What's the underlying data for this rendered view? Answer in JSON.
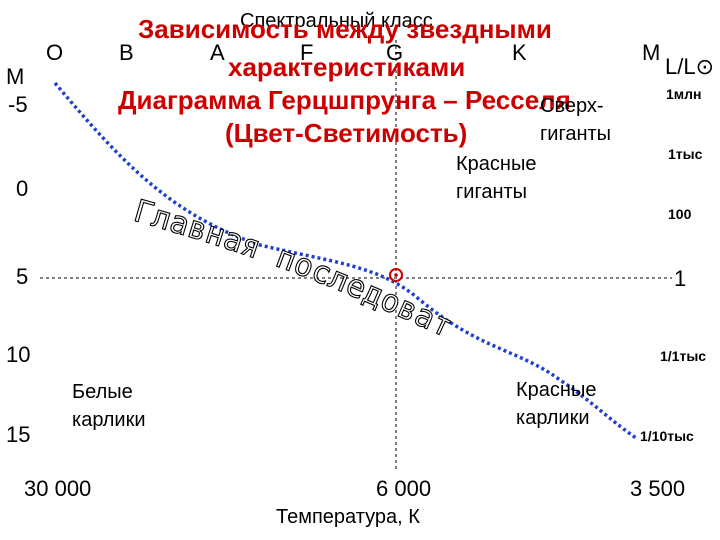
{
  "title": {
    "line1": "Зависимость между звездными",
    "line2": "характеристиками",
    "line3": "Диаграмма Герцшпрунга – Ресселя",
    "line4": "(Цвет-Светимость)"
  },
  "spectral_axis_title": "Спектральный класс",
  "left_axis_title": "M",
  "right_axis_title_m": "M",
  "right_axis_title": "L/L⊙",
  "spectral_classes": [
    "O",
    "B",
    "A",
    "F",
    "G",
    "K"
  ],
  "magnitudes": [
    "-5",
    "0",
    "5",
    "10",
    "15"
  ],
  "luminosities": [
    "1млн",
    "1тыс",
    "100",
    "1",
    "1/1тыс",
    "1/10тыс"
  ],
  "temperatures": [
    "30 000",
    "6 000",
    "3 500"
  ],
  "x_axis_title": "Температура, К",
  "regions": {
    "main_sequence": "Главная последовательность",
    "red_giants": "Красные\nгиганты",
    "supergiants": "Сверх-\nгиганты",
    "white_dwarfs": "Белые\nкарлики",
    "red_dwarfs": "Красные\nкарлики"
  },
  "sun_symbol": "⊙",
  "colors": {
    "title": "#cc0000",
    "main_sequence_line": "#1f3fd0",
    "guide_lines": "#000000",
    "sun_marker": "#cc0000",
    "main_sequence_text": "#ffffff"
  }
}
